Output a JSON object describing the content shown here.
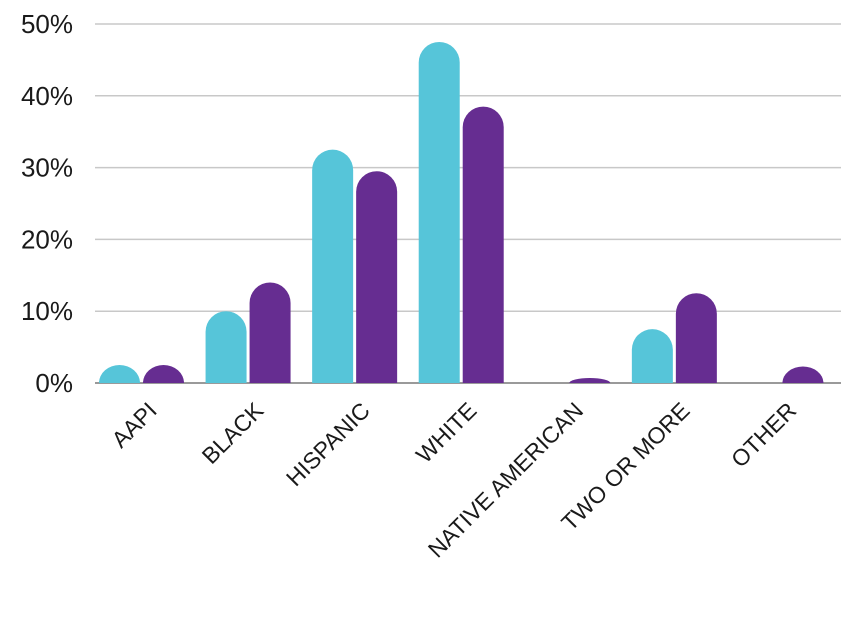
{
  "chart_data": {
    "type": "bar",
    "categories": [
      "AAPI",
      "BLACK",
      "HISPANIC",
      "WHITE",
      "NATIVE AMERICAN",
      "TWO OR MORE",
      "OTHER"
    ],
    "series": [
      {
        "color": "#56C5D9",
        "values": [
          2.5,
          10,
          32.5,
          47.5,
          0,
          7.5,
          0
        ]
      },
      {
        "color": "#662D91",
        "values": [
          2.5,
          14,
          29.5,
          38.5,
          0.7,
          12.5,
          2.3
        ]
      }
    ],
    "yticks": [
      "0%",
      "10%",
      "20%",
      "30%",
      "40%",
      "50%"
    ],
    "ylim": [
      0,
      50
    ],
    "grid": true,
    "title": "",
    "xlabel": "",
    "ylabel": ""
  }
}
